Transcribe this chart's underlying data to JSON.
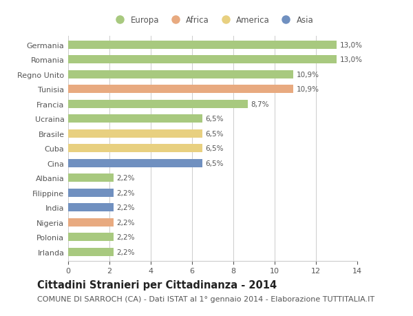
{
  "categories": [
    "Germania",
    "Romania",
    "Regno Unito",
    "Tunisia",
    "Francia",
    "Ucraina",
    "Brasile",
    "Cuba",
    "Cina",
    "Albania",
    "Filippine",
    "India",
    "Nigeria",
    "Polonia",
    "Irlanda"
  ],
  "values": [
    13.0,
    13.0,
    10.9,
    10.9,
    8.7,
    6.5,
    6.5,
    6.5,
    6.5,
    2.2,
    2.2,
    2.2,
    2.2,
    2.2,
    2.2
  ],
  "labels": [
    "13,0%",
    "13,0%",
    "10,9%",
    "10,9%",
    "8,7%",
    "6,5%",
    "6,5%",
    "6,5%",
    "6,5%",
    "2,2%",
    "2,2%",
    "2,2%",
    "2,2%",
    "2,2%",
    "2,2%"
  ],
  "continents": [
    "Europa",
    "Europa",
    "Europa",
    "Africa",
    "Europa",
    "Europa",
    "America",
    "America",
    "Asia",
    "Europa",
    "Asia",
    "Asia",
    "Africa",
    "Europa",
    "Europa"
  ],
  "colors": {
    "Europa": "#a8c97f",
    "Africa": "#e8aa80",
    "America": "#e8d080",
    "Asia": "#7090c0"
  },
  "legend_entries": [
    "Europa",
    "Africa",
    "America",
    "Asia"
  ],
  "title": "Cittadini Stranieri per Cittadinanza - 2014",
  "subtitle": "COMUNE DI SARROCH (CA) - Dati ISTAT al 1° gennaio 2014 - Elaborazione TUTTITALIA.IT",
  "xlim": [
    0,
    14
  ],
  "xticks": [
    0,
    2,
    4,
    6,
    8,
    10,
    12,
    14
  ],
  "background_color": "#ffffff",
  "grid_color": "#cccccc",
  "bar_height": 0.55,
  "title_fontsize": 10.5,
  "subtitle_fontsize": 8,
  "label_fontsize": 7.5,
  "ytick_fontsize": 8,
  "xtick_fontsize": 8,
  "legend_fontsize": 8.5
}
